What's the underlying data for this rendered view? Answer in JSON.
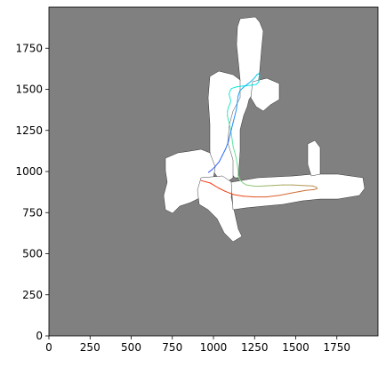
{
  "chart_data": {
    "type": "map",
    "title": "",
    "xlabel": "",
    "ylabel": "",
    "xlim": [
      0,
      2000
    ],
    "ylim": [
      0,
      2000
    ],
    "x_ticks": [
      0,
      250,
      500,
      750,
      1000,
      1250,
      1500,
      1750
    ],
    "y_ticks": [
      0,
      250,
      500,
      750,
      1000,
      1250,
      1500,
      1750
    ],
    "grid": false,
    "legend": "none",
    "colors": {
      "unknown_area": "#808080",
      "free_space": "#ffffff",
      "obstacle": "#000000",
      "trajectory_start": "#ff2a00",
      "trajectory_mid": "#7fe08a",
      "trajectory_late": "#00e8e8",
      "trajectory_end": "#3355ff"
    },
    "trajectory": {
      "x": [
        925,
        980,
        1030,
        1070,
        1120,
        1180,
        1250,
        1320,
        1400,
        1480,
        1560,
        1610,
        1630,
        1625,
        1600,
        1540,
        1480,
        1420,
        1360,
        1310,
        1270,
        1240,
        1200,
        1180,
        1160,
        1150,
        1150,
        1145,
        1140,
        1130,
        1120,
        1115,
        1110,
        1105,
        1100,
        1095,
        1090,
        1085,
        1085,
        1090,
        1100,
        1105,
        1100,
        1095,
        1100,
        1110,
        1140,
        1180,
        1230,
        1260,
        1275,
        1280,
        1280,
        1275,
        1265,
        1250,
        1230,
        1205,
        1180,
        1160,
        1150,
        1145,
        1140,
        1130,
        1120,
        1110,
        1100,
        1090,
        1075,
        1055,
        1035,
        1010,
        990,
        970
      ],
      "y": [
        945,
        930,
        900,
        880,
        860,
        850,
        845,
        845,
        855,
        870,
        885,
        890,
        895,
        905,
        912,
        915,
        918,
        918,
        915,
        912,
        910,
        912,
        918,
        930,
        950,
        975,
        1005,
        1040,
        1075,
        1115,
        1150,
        1185,
        1220,
        1250,
        1275,
        1295,
        1315,
        1340,
        1365,
        1390,
        1410,
        1430,
        1450,
        1470,
        1490,
        1505,
        1515,
        1520,
        1525,
        1530,
        1545,
        1565,
        1585,
        1595,
        1590,
        1570,
        1550,
        1530,
        1510,
        1490,
        1460,
        1420,
        1380,
        1340,
        1300,
        1260,
        1220,
        1180,
        1140,
        1100,
        1060,
        1030,
        1010,
        995
      ]
    }
  }
}
